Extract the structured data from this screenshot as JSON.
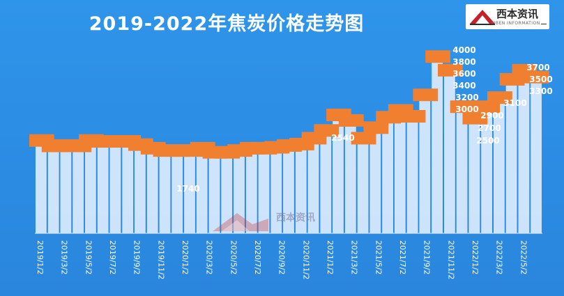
{
  "title": "2019-2022年焦炭价格走势图",
  "logo": {
    "text": "西本资讯",
    "sub": "XIBEN INFORMATION"
  },
  "colors": {
    "background": "#2c8ee6",
    "bar": "#eaf3ff",
    "label_box": "#f07f30",
    "label_text": "#ffffff"
  },
  "chart_data": {
    "type": "bar",
    "title": "2019-2022年焦炭价格走势图",
    "xlabel": "",
    "ylabel": "",
    "ylim": [
      0,
      4200
    ],
    "x_tick_labels": [
      "2019/1/2",
      "2019/3/2",
      "2019/5/2",
      "2019/7/2",
      "2019/9/2",
      "2019/11/2",
      "2020/1/2",
      "2020/3/2",
      "2020/5/2",
      "2020/7/2",
      "2020/9/2",
      "2020/11/2",
      "2021/1/2",
      "2021/3/2",
      "2021/5/2",
      "2021/7/2",
      "2021/9/2",
      "2021/11/2",
      "2022/1/2",
      "2022/3/2",
      "2022/5/2"
    ],
    "dates": [
      "2019/1",
      "2019/2",
      "2019/3",
      "2019/4",
      "2019/5",
      "2019/6",
      "2019/7",
      "2019/8",
      "2019/9",
      "2019/10",
      "2019/11",
      "2019/12",
      "2020/1",
      "2020/2",
      "2020/3",
      "2020/4",
      "2020/5",
      "2020/6",
      "2020/7",
      "2020/8",
      "2020/9",
      "2020/10",
      "2020/11",
      "2020/12",
      "2021/1",
      "2021/2",
      "2021/3",
      "2021/4",
      "2021/5",
      "2021/6",
      "2021/7",
      "2021/8",
      "2021/9",
      "2021/10",
      "2021/11",
      "2021/12",
      "2022/1",
      "2022/2",
      "2022/3",
      "2022/4",
      "2022/5"
    ],
    "values": [
      1960,
      1840,
      1850,
      1840,
      1960,
      1940,
      1940,
      1940,
      1870,
      1790,
      1740,
      1740,
      1740,
      1790,
      1700,
      1700,
      1740,
      1790,
      1790,
      1810,
      1850,
      1880,
      2010,
      2180,
      2520,
      2400,
      2010,
      2240,
      2470,
      2620,
      2490,
      2960,
      3800,
      3500,
      2700,
      2450,
      2700,
      2900,
      3300,
      3500,
      3350
    ],
    "labeled_values": [
      "1740",
      "2540",
      "4000",
      "3800",
      "3600",
      "3400",
      "3200",
      "3000",
      "2900",
      "2700",
      "2500",
      "3700",
      "3500",
      "3300",
      "3100"
    ]
  }
}
